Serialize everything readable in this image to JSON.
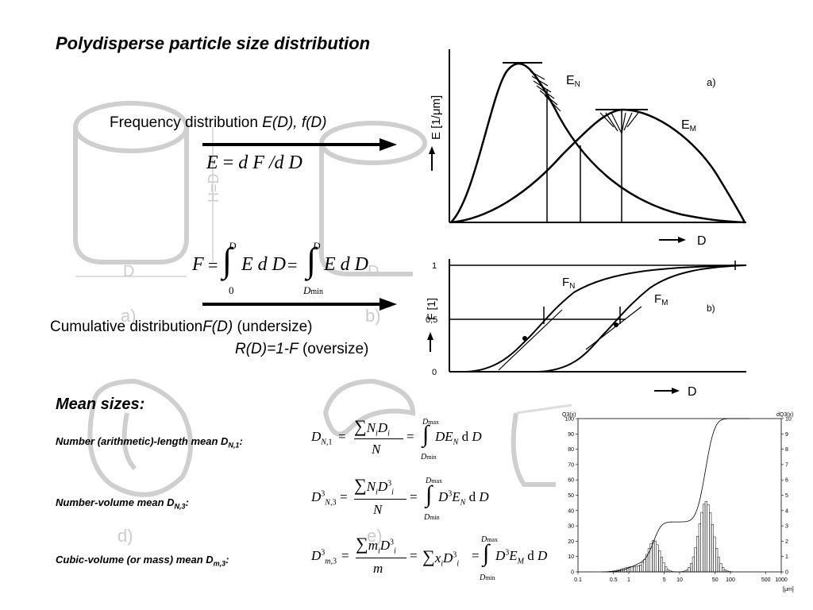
{
  "title": "Polydisperse particle size distribution",
  "frequency": {
    "label": "Frequency distribution ",
    "label_italic": "E(D), f(D)",
    "eq_lhs": "E",
    "eq_rhs": "d F /d D"
  },
  "cumulative": {
    "label": "Cumulative distribution",
    "undersize_italic": "F(D)",
    "undersize_text": " (undersize)",
    "oversize_italic": "R(D)=1-F",
    "oversize_text": " (oversize)",
    "eq_lhs": "F",
    "eq_mid": "E d D",
    "eq_rhs": "E d D",
    "upper1": "D",
    "lower1": "0",
    "upper2": "D",
    "lower2": "D",
    "lower2_sub": "min"
  },
  "background_letters": {
    "a": "a)",
    "b": "b)",
    "d": "d)",
    "e": "e)",
    "D1": "D",
    "D2": "D",
    "H": "H=D"
  },
  "mean_sizes": {
    "heading": "Mean sizes:",
    "items": [
      {
        "label": "Number (arithmetic)-length mean D",
        "sub": "N,1",
        "colon": ":"
      },
      {
        "label": "Number-volume mean D",
        "sub": "N,3",
        "colon": ":"
      },
      {
        "label": "Cubic-volume (or mass) mean D",
        "sub": "m,3",
        "colon": ":"
      }
    ]
  },
  "chart_data": [
    {
      "type": "line",
      "panel": "a)",
      "ylabel": "E [1/μm]",
      "xlabel": "D",
      "series": [
        {
          "name": "E",
          "name_sub": "N"
        },
        {
          "name": "E",
          "name_sub": "M"
        }
      ]
    },
    {
      "type": "line",
      "panel": "b)",
      "ylabel": "F [1]",
      "xlabel": "D",
      "yticks": [
        "0",
        "0,5",
        "1"
      ],
      "series": [
        {
          "name": "F",
          "name_sub": "N"
        },
        {
          "name": "F",
          "name_sub": "M"
        }
      ]
    },
    {
      "type": "bar",
      "y_left_label": "Q3(x)",
      "y_right_label": "dQ3(x)",
      "y_left_ticks": [
        "0",
        "10",
        "20",
        "30",
        "40",
        "50",
        "60",
        "70",
        "80",
        "90",
        "100"
      ],
      "y_right_ticks": [
        "0",
        "1",
        "2",
        "3",
        "4",
        "5",
        "6",
        "7",
        "8",
        "9",
        "10"
      ],
      "x_ticks": [
        "0.1",
        "0.5",
        "1",
        "5",
        "10",
        "50",
        "100",
        "500",
        "1000"
      ],
      "x_unit": "[μm]",
      "xscale": "log",
      "ylim_left": [
        0,
        100
      ],
      "ylim_right": [
        0,
        10
      ]
    }
  ]
}
